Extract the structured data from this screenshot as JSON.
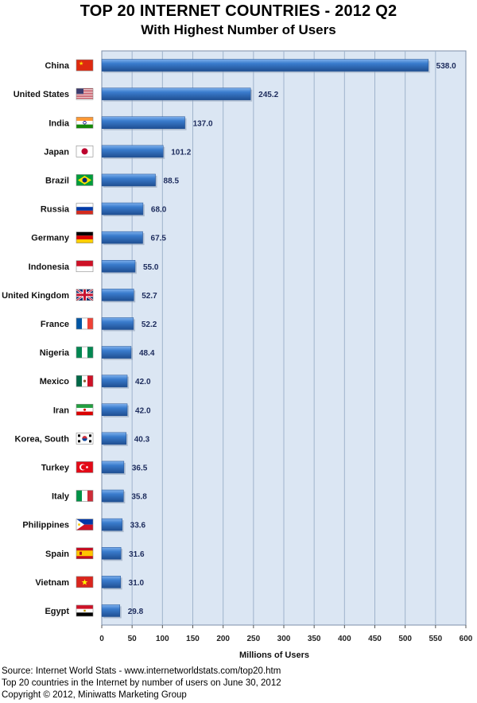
{
  "chart_data": {
    "type": "bar",
    "orientation": "horizontal",
    "title": "TOP 20 INTERNET COUNTRIES  - 2012 Q2",
    "subtitle": "With Highest Number of Users",
    "xlabel": "Millions of Users",
    "ylabel": "",
    "xlim": [
      0,
      600
    ],
    "xticks": [
      "0",
      "50",
      "100",
      "150",
      "200",
      "250",
      "300",
      "350",
      "400",
      "450",
      "500",
      "550",
      "600"
    ],
    "grid": true,
    "categories": [
      "China",
      "United States",
      "India",
      "Japan",
      "Brazil",
      "Russia",
      "Germany",
      "Indonesia",
      "United Kingdom",
      "France",
      "Nigeria",
      "Mexico",
      "Iran",
      "Korea, South",
      "Turkey",
      "Italy",
      "Philippines",
      "Spain",
      "Vietnam",
      "Egypt"
    ],
    "values": [
      538.0,
      245.2,
      137.0,
      101.2,
      88.5,
      68.0,
      67.5,
      55.0,
      52.7,
      52.2,
      48.4,
      42.0,
      42.0,
      40.3,
      36.5,
      35.8,
      33.6,
      31.6,
      31.0,
      29.8
    ],
    "value_labels": [
      "538.0",
      "245.2",
      "137.0",
      "101.2",
      "88.5",
      "68.0",
      "67.5",
      "55.0",
      "52.7",
      "52.2",
      "48.4",
      "42.0",
      "42.0",
      "40.3",
      "36.5",
      "35.8",
      "33.6",
      "31.6",
      "31.0",
      "29.8"
    ],
    "flags": [
      "china-flag",
      "usa-flag",
      "india-flag",
      "japan-flag",
      "brazil-flag",
      "russia-flag",
      "germany-flag",
      "indonesia-flag",
      "uk-flag",
      "france-flag",
      "nigeria-flag",
      "mexico-flag",
      "iran-flag",
      "south-korea-flag",
      "turkey-flag",
      "italy-flag",
      "philippines-flag",
      "spain-flag",
      "vietnam-flag",
      "egypt-flag"
    ],
    "colors": {
      "bar": "#2f6fc0",
      "bar_light": "#6ea3e6",
      "bar_dark": "#1f4f92",
      "plot_bg": "#dbe6f3",
      "grid": "#9fb3cc",
      "value_label": "#1c2b5c"
    }
  },
  "footer": {
    "line1": "Source: Internet World Stats  -  www.internetworldstats.com/top20.htm",
    "line2": "Top 20 countries in the Internet by number of users on June 30, 2012",
    "line3": "Copyright © 2012, Miniwatts Marketing Group"
  }
}
